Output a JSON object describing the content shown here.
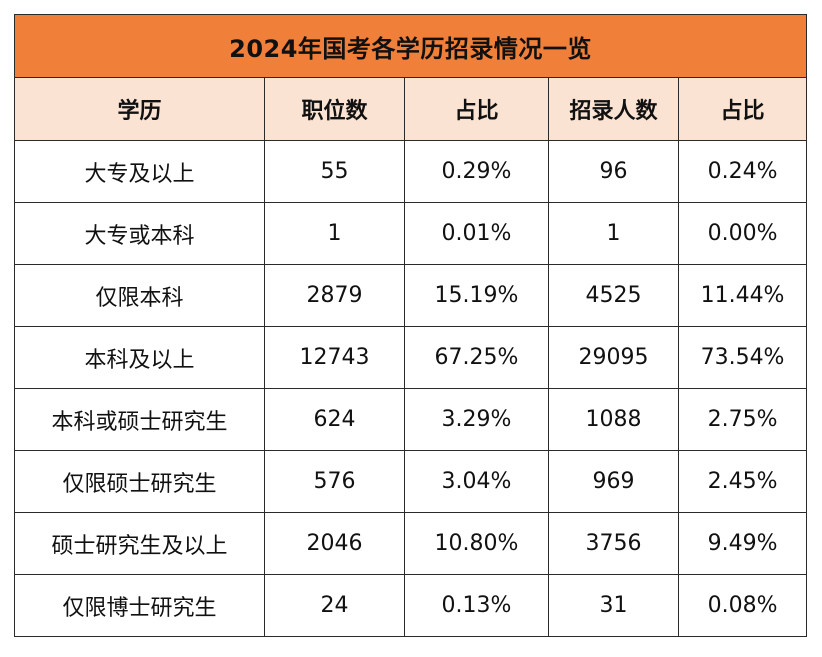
{
  "table": {
    "title": "2024年国考各学历招录情况一览",
    "headers": [
      "学历",
      "职位数",
      "占比",
      "招录人数",
      "占比"
    ],
    "rows": [
      [
        "大专及以上",
        "55",
        "0.29%",
        "96",
        "0.24%"
      ],
      [
        "大专或本科",
        "1",
        "0.01%",
        "1",
        "0.00%"
      ],
      [
        "仅限本科",
        "2879",
        "15.19%",
        "4525",
        "11.44%"
      ],
      [
        "本科及以上",
        "12743",
        "67.25%",
        "29095",
        "73.54%"
      ],
      [
        "本科或硕士研究生",
        "624",
        "3.29%",
        "1088",
        "2.75%"
      ],
      [
        "仅限硕士研究生",
        "576",
        "3.04%",
        "969",
        "2.45%"
      ],
      [
        "硕士研究生及以上",
        "2046",
        "10.80%",
        "3756",
        "9.49%"
      ],
      [
        "仅限博士研究生",
        "24",
        "0.13%",
        "31",
        "0.08%"
      ]
    ],
    "colors": {
      "title_bg": "#f07f3a",
      "header_bg": "#fbe3d3",
      "border": "#2a2a2a"
    }
  }
}
